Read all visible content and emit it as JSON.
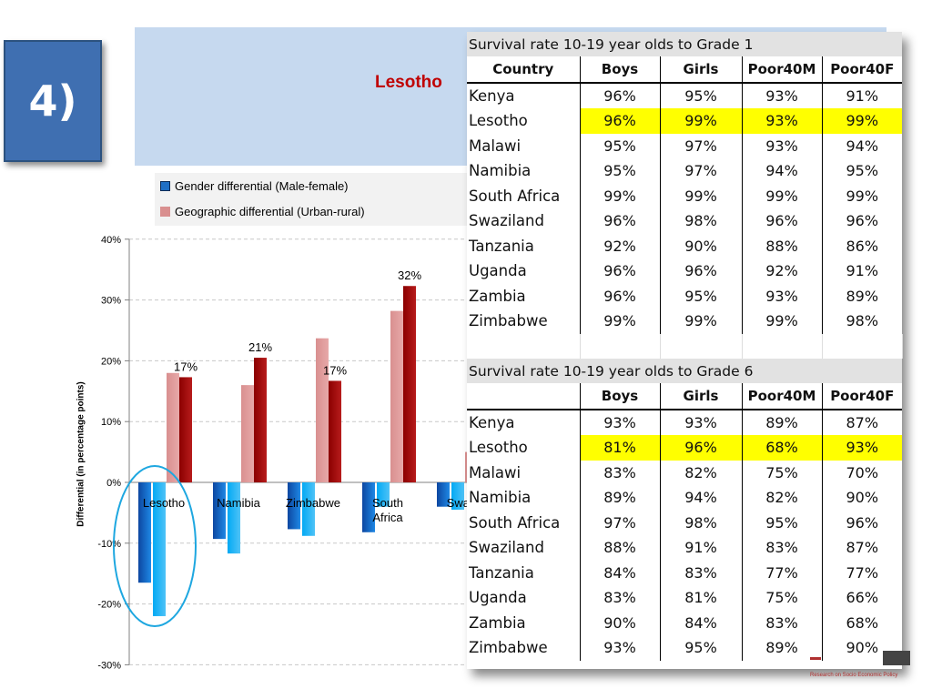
{
  "badge": "4)",
  "banner": {
    "title": "Lesotho"
  },
  "legend": [
    {
      "label": "Gender differential (Male-female)",
      "color": "#1f6fc5"
    },
    {
      "label": "Geographic differential (Urban-rural)",
      "color": "#d98f8f"
    }
  ],
  "chart_data": {
    "type": "bar",
    "ylabel": "Differential (in percentage points)",
    "ylim": [
      -30,
      40
    ],
    "yticks": [
      "-30%",
      "-20%",
      "-10%",
      "0%",
      "10%",
      "20%",
      "30%",
      "40%"
    ],
    "grid": true,
    "categories": [
      "Lesotho",
      "Namibia",
      "Zimbabwe",
      "South Africa",
      "Swazi"
    ],
    "series": [
      {
        "color": "#1565c0",
        "values": [
          -16.5,
          -9.3,
          -7.7,
          -8.2,
          -4
        ]
      },
      {
        "color": "#29b6f6",
        "values": [
          -22,
          -11.7,
          -8.8,
          -4,
          -4.5
        ]
      },
      {
        "color": "#d98f8f",
        "values": [
          18,
          16,
          23.7,
          28.2,
          5
        ]
      },
      {
        "color": "#9e0a0a",
        "values": [
          17.3,
          20.5,
          16.7,
          32.3,
          null
        ]
      }
    ],
    "data_labels": [
      "17%",
      "21%",
      "17%",
      "32%"
    ],
    "highlight": "Lesotho"
  },
  "table1": {
    "caption": "Survival rate 10-19 year olds to Grade 1",
    "headers": [
      "Country",
      "Boys",
      "Girls",
      "Poor40M",
      "Poor40F"
    ],
    "highlight_row": "Lesotho",
    "rows": [
      [
        "Kenya",
        "96%",
        "95%",
        "93%",
        "91%"
      ],
      [
        "Lesotho",
        "96%",
        "99%",
        "93%",
        "99%"
      ],
      [
        "Malawi",
        "95%",
        "97%",
        "93%",
        "94%"
      ],
      [
        "Namibia",
        "95%",
        "97%",
        "94%",
        "95%"
      ],
      [
        "South Africa",
        "99%",
        "99%",
        "99%",
        "99%"
      ],
      [
        "Swaziland",
        "96%",
        "98%",
        "96%",
        "96%"
      ],
      [
        "Tanzania",
        "92%",
        "90%",
        "88%",
        "86%"
      ],
      [
        "Uganda",
        "96%",
        "96%",
        "92%",
        "91%"
      ],
      [
        "Zambia",
        "96%",
        "95%",
        "93%",
        "89%"
      ],
      [
        "Zimbabwe",
        "99%",
        "99%",
        "99%",
        "98%"
      ]
    ]
  },
  "table2": {
    "caption": "Survival rate 10-19 year olds to Grade 6",
    "headers": [
      "",
      "Boys",
      "Girls",
      "Poor40M",
      "Poor40F"
    ],
    "highlight_row": "Lesotho",
    "rows": [
      [
        "Kenya",
        "93%",
        "93%",
        "89%",
        "87%"
      ],
      [
        "Lesotho",
        "81%",
        "96%",
        "68%",
        "93%"
      ],
      [
        "Malawi",
        "83%",
        "82%",
        "75%",
        "70%"
      ],
      [
        "Namibia",
        "89%",
        "94%",
        "82%",
        "90%"
      ],
      [
        "South Africa",
        "97%",
        "98%",
        "95%",
        "96%"
      ],
      [
        "Swaziland",
        "88%",
        "91%",
        "83%",
        "87%"
      ],
      [
        "Tanzania",
        "84%",
        "83%",
        "77%",
        "77%"
      ],
      [
        "Uganda",
        "83%",
        "81%",
        "75%",
        "66%"
      ],
      [
        "Zambia",
        "90%",
        "84%",
        "83%",
        "68%"
      ],
      [
        "Zimbabwe",
        "93%",
        "95%",
        "89%",
        "90%"
      ]
    ]
  },
  "logo": {
    "text": "Research on Socio Economic Policy"
  }
}
